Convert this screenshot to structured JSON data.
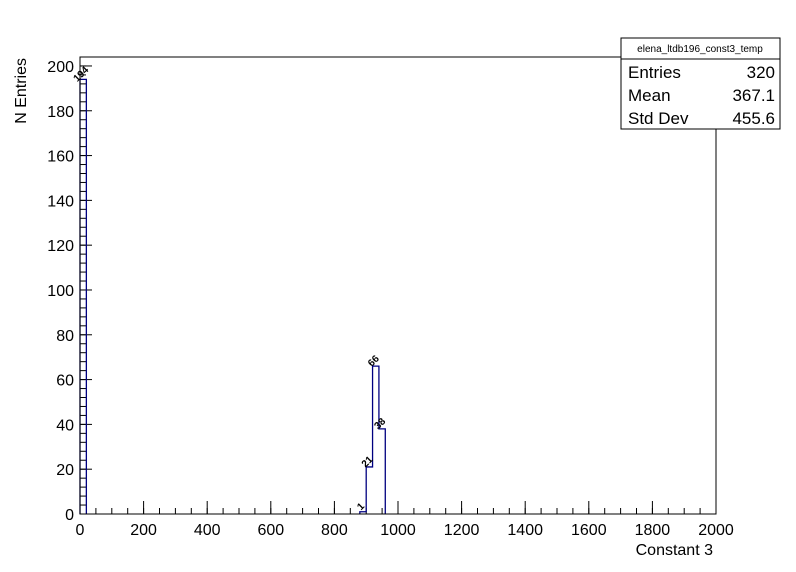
{
  "chart_data": {
    "type": "bar",
    "histogram_name": "elena_ltdb196_const3_temp",
    "xlabel": "Constant 3",
    "ylabel": "N Entries",
    "xlim": [
      0,
      2000
    ],
    "ylim": [
      0,
      204
    ],
    "x_ticks": [
      0,
      200,
      400,
      600,
      800,
      1000,
      1200,
      1400,
      1600,
      1800,
      2000
    ],
    "y_ticks": [
      0,
      20,
      40,
      60,
      80,
      100,
      120,
      140,
      160,
      180,
      200
    ],
    "bin_width": 20,
    "bins": [
      {
        "x": 0,
        "value": 194,
        "label": "194"
      },
      {
        "x": 880,
        "value": 1,
        "label": "1"
      },
      {
        "x": 900,
        "value": 21,
        "label": "21"
      },
      {
        "x": 920,
        "value": 66,
        "label": "66"
      },
      {
        "x": 940,
        "value": 38,
        "label": "38"
      }
    ],
    "grid": false,
    "line_color": "#000080",
    "stats": {
      "title": "elena_ltdb196_const3_temp",
      "rows": [
        {
          "label": "Entries",
          "value": "320"
        },
        {
          "label": "Mean",
          "value": "367.1"
        },
        {
          "label": "Std Dev",
          "value": "455.6"
        }
      ]
    }
  }
}
